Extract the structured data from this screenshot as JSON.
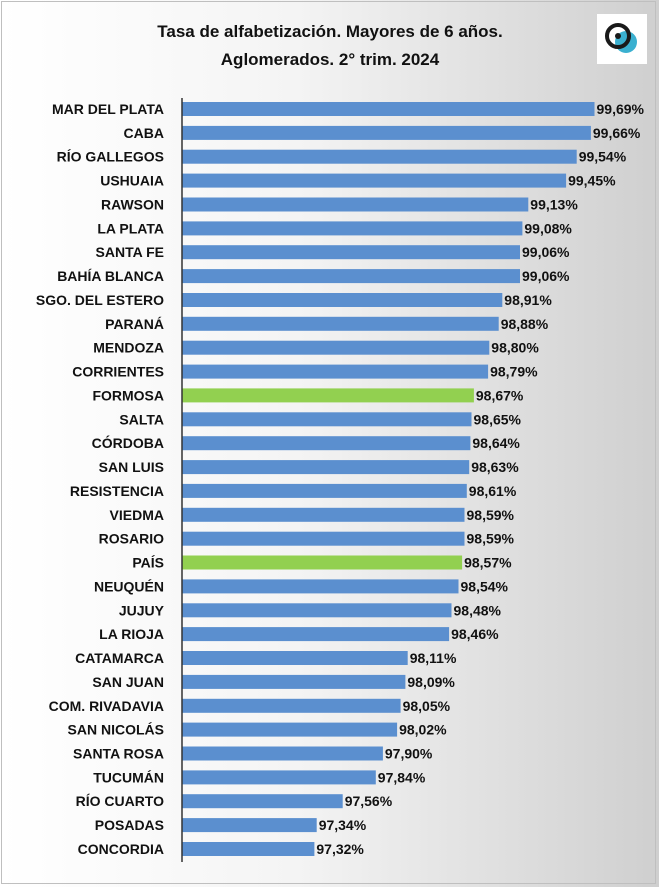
{
  "chart_data": {
    "type": "bar",
    "orientation": "horizontal",
    "title": "Tasa de alfabetización. Mayores de 6 años. Aglomerados. 2° trim. 2024",
    "title_lines": [
      "Tasa de alfabetización. Mayores de 6 años.",
      "Aglomerados. 2° trim. 2024"
    ],
    "categories": [
      "MAR DEL PLATA",
      "CABA",
      "RÍO GALLEGOS",
      "USHUAIA",
      "RAWSON",
      "LA PLATA",
      "SANTA FE",
      "BAHÍA BLANCA",
      "SGO. DEL ESTERO",
      "PARANÁ",
      "MENDOZA",
      "CORRIENTES",
      "FORMOSA",
      "SALTA",
      "CÓRDOBA",
      "SAN LUIS",
      "RESISTENCIA",
      "VIEDMA",
      "ROSARIO",
      "PAÍS",
      "NEUQUÉN",
      "JUJUY",
      "LA RIOJA",
      "CATAMARCA",
      "SAN JUAN",
      "COM. RIVADAVIA",
      "SAN NICOLÁS",
      "SANTA ROSA",
      "TUCUMÁN",
      "RÍO CUARTO",
      "POSADAS",
      "CONCORDIA"
    ],
    "values": [
      99.69,
      99.66,
      99.54,
      99.45,
      99.13,
      99.08,
      99.06,
      99.06,
      98.91,
      98.88,
      98.8,
      98.79,
      98.67,
      98.65,
      98.64,
      98.63,
      98.61,
      98.59,
      98.59,
      98.57,
      98.54,
      98.48,
      98.46,
      98.11,
      98.09,
      98.05,
      98.02,
      97.9,
      97.84,
      97.56,
      97.34,
      97.32
    ],
    "value_labels": [
      "99,69%",
      "99,66%",
      "99,54%",
      "99,45%",
      "99,13%",
      "99,08%",
      "99,06%",
      "99,06%",
      "98,91%",
      "98,88%",
      "98,80%",
      "98,79%",
      "98,67%",
      "98,65%",
      "98,64%",
      "98,63%",
      "98,61%",
      "98,59%",
      "98,59%",
      "98,57%",
      "98,54%",
      "98,48%",
      "98,46%",
      "98,11%",
      "98,09%",
      "98,05%",
      "98,02%",
      "97,90%",
      "97,84%",
      "97,56%",
      "97,34%",
      "97,32%"
    ],
    "highlighted": [
      "FORMOSA",
      "PAÍS"
    ],
    "xlim": [
      96.2,
      99.72
    ],
    "colors": {
      "bar": "#5b8fcf",
      "highlight": "#92d050",
      "axis": "#333333"
    },
    "xlabel": "",
    "ylabel": "",
    "grid": false,
    "legend": "none"
  },
  "logo": {
    "icon": "logo-icon",
    "colors": [
      "#1a1a1a",
      "#3ab0d0"
    ]
  }
}
